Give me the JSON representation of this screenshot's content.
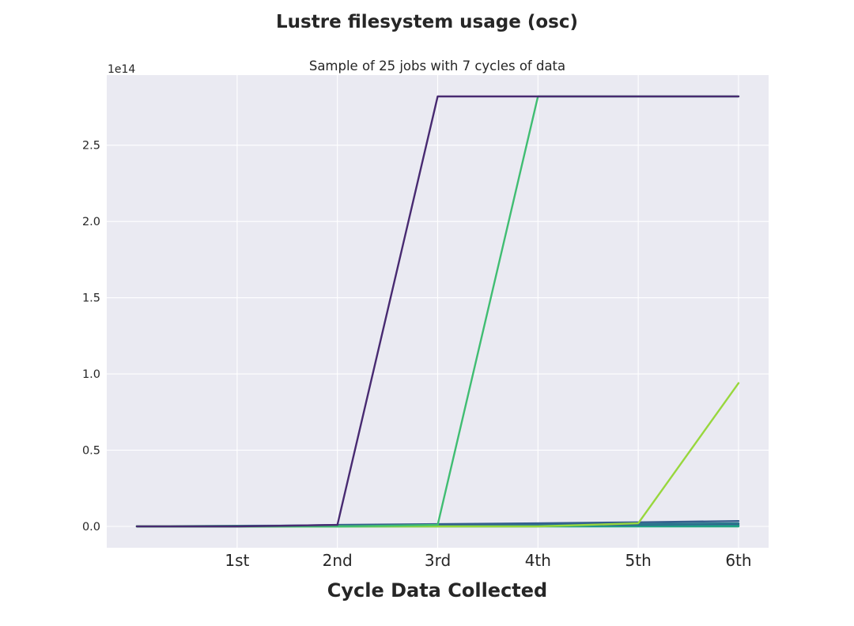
{
  "chart_data": {
    "type": "line",
    "title": "Lustre filesystem usage (osc)",
    "subtitle": "Sample of 25 jobs with 7 cycles of data",
    "xlabel": "Cycle Data Collected",
    "ylabel": "",
    "y_offset_label": "1e14",
    "x": [
      0,
      1,
      2,
      3,
      4,
      5,
      6
    ],
    "x_tick_values": [
      1,
      2,
      3,
      4,
      5,
      6
    ],
    "x_tick_labels": [
      "1st",
      "2nd",
      "3rd",
      "4th",
      "5th",
      "6th"
    ],
    "xlim": [
      -0.3,
      6.3
    ],
    "y_tick_values": [
      0.0,
      0.5,
      1.0,
      1.5,
      2.0,
      2.5
    ],
    "y_tick_labels": [
      "0.0",
      "0.5",
      "1.0",
      "1.5",
      "2.0",
      "2.5"
    ],
    "ylim": [
      -0.14,
      2.96
    ],
    "y_scale": 100000000000000.0,
    "grid": true,
    "background": "#eaeaf2",
    "series": [
      {
        "color": "#482a71",
        "values": [
          0.0,
          0.0,
          0.01,
          2.82,
          2.82,
          2.82,
          2.82
        ]
      },
      {
        "color": "#40bd72",
        "values": [
          0.0,
          0.0,
          0.0,
          0.01,
          2.82,
          2.82,
          2.82
        ]
      },
      {
        "color": "#98d73d",
        "values": [
          0.0,
          0.0,
          0.0,
          0.0,
          0.0,
          0.02,
          0.94
        ]
      },
      {
        "color": "#355f8d",
        "values": [
          0.0,
          0.0,
          0.01,
          0.015,
          0.02,
          0.027,
          0.035
        ]
      },
      {
        "color": "#2a788e",
        "values": [
          0.0,
          0.004,
          0.006,
          0.008,
          0.012,
          0.016,
          0.02
        ]
      },
      {
        "color": "#3b528b",
        "values": [
          0.0,
          0.002,
          0.004,
          0.006,
          0.009,
          0.013,
          0.017
        ]
      },
      {
        "color": "#21918c",
        "values": [
          0.0,
          0.0,
          0.002,
          0.003,
          0.005,
          0.007,
          0.01
        ]
      },
      {
        "color": "#1fa187",
        "values": [
          0.0,
          0.0,
          0.001,
          0.002,
          0.003,
          0.004,
          0.006
        ]
      },
      {
        "color": "#28ae80",
        "values": [
          0.0,
          0.0,
          0.0,
          0.001,
          0.002,
          0.003,
          0.004
        ]
      },
      {
        "color": "#22a884",
        "values": [
          0.0,
          0.0,
          0.0,
          0.0,
          0.0,
          0.0,
          0.0
        ]
      }
    ]
  }
}
